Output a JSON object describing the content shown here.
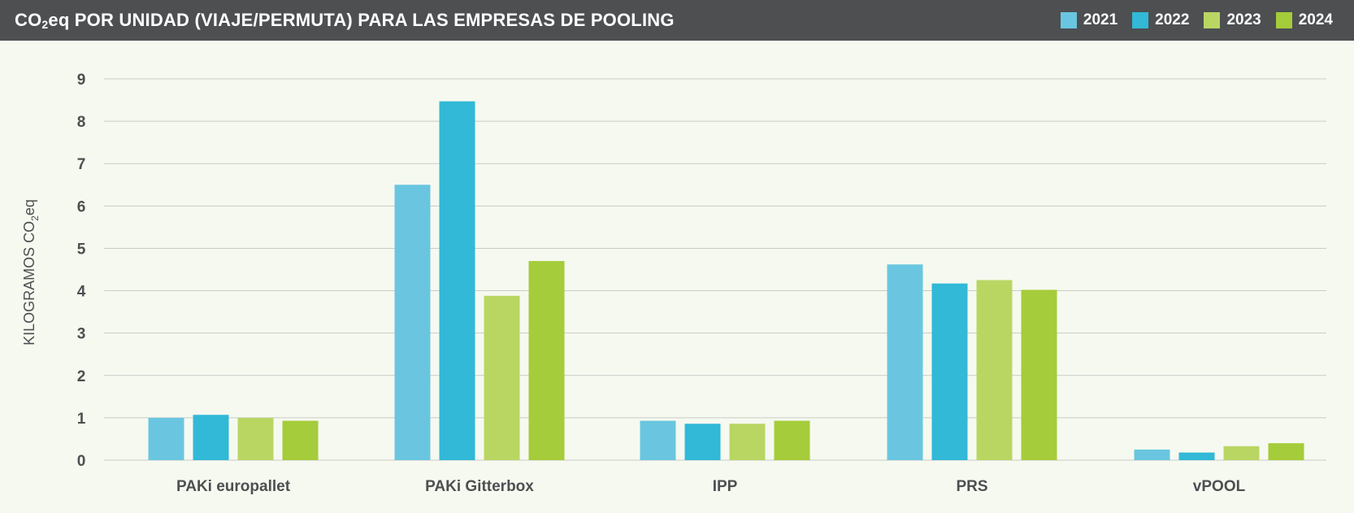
{
  "header": {
    "title_pre": "CO",
    "title_sub": "2",
    "title_post": "eq POR UNIDAD (VIAJE/PERMUTA) PARA LAS EMPRESAS DE POOLING"
  },
  "chart_data": {
    "type": "bar",
    "title": "CO2eq POR UNIDAD (VIAJE/PERMUTA) PARA LAS EMPRESAS DE POOLING",
    "xlabel": "",
    "ylabel": "KILOGRAMOS CO2eq",
    "ylabel_pre": "KILOGRAMOS CO",
    "ylabel_sub": "2",
    "ylabel_post": "eq",
    "ylim": [
      0,
      9
    ],
    "yticks": [
      "0",
      "1",
      "2",
      "3",
      "4",
      "5",
      "6",
      "7",
      "8",
      "9"
    ],
    "grid": true,
    "legend_position": "top-right",
    "categories": [
      "PAKi europallet",
      "PAKi Gitterbox",
      "IPP",
      "PRS",
      "vPOOL"
    ],
    "series": [
      {
        "name": "2021",
        "color": "#6ac6e0",
        "values": [
          1.0,
          6.5,
          0.93,
          4.62,
          0.25
        ]
      },
      {
        "name": "2022",
        "color": "#31b9d7",
        "values": [
          1.07,
          8.47,
          0.86,
          4.17,
          0.18
        ]
      },
      {
        "name": "2023",
        "color": "#b9d663",
        "values": [
          1.0,
          3.88,
          0.86,
          4.25,
          0.33
        ]
      },
      {
        "name": "2024",
        "color": "#a5cc3a",
        "values": [
          0.93,
          4.7,
          0.93,
          4.02,
          0.4
        ]
      }
    ]
  },
  "colors": {
    "header_bg": "#4d4f51",
    "page_bg": "#f6f9f0",
    "grid": "#c9ccc7",
    "axis_text": "#4d4f51"
  }
}
